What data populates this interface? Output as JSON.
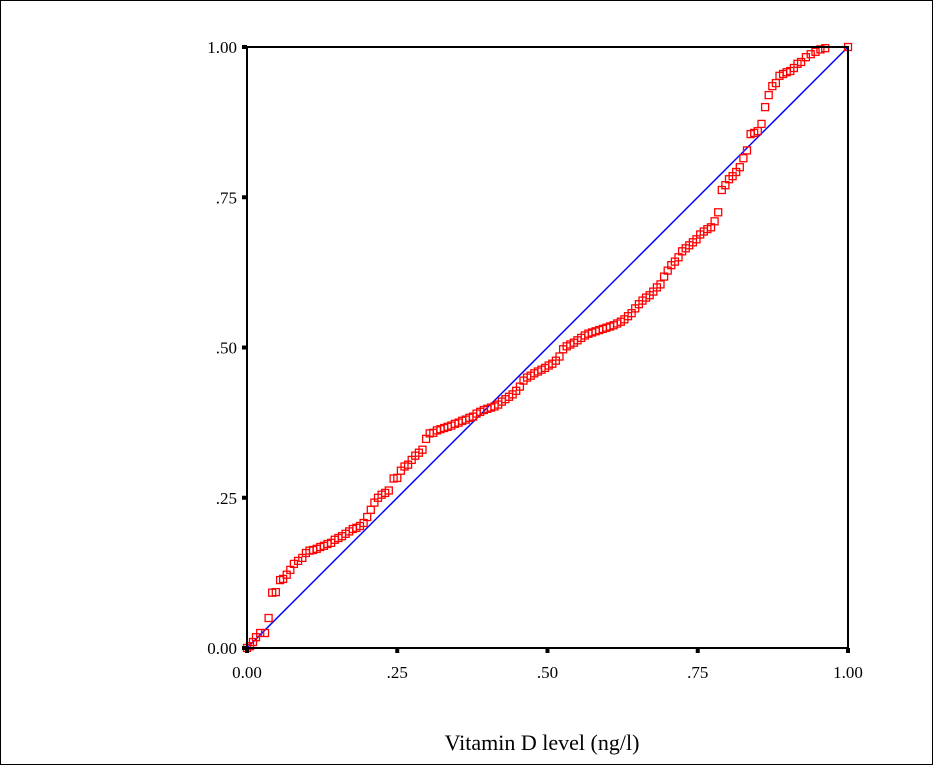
{
  "chart_data": {
    "type": "scatter",
    "title": "",
    "xlabel": "Vitamin D level (ng/l)",
    "ylabel": "",
    "xlim": [
      0,
      1
    ],
    "ylim": [
      0,
      1
    ],
    "x_ticks": [
      {
        "value": 0.0,
        "label": "0.00"
      },
      {
        "value": 0.25,
        "label": ".25"
      },
      {
        "value": 0.5,
        "label": ".50"
      },
      {
        "value": 0.75,
        "label": ".75"
      },
      {
        "value": 1.0,
        "label": "1.00"
      }
    ],
    "y_ticks": [
      {
        "value": 0.0,
        "label": "0.00"
      },
      {
        "value": 0.25,
        "label": ".25"
      },
      {
        "value": 0.5,
        "label": ".50"
      },
      {
        "value": 0.75,
        "label": ".75"
      },
      {
        "value": 1.0,
        "label": "1.00"
      }
    ],
    "grid": false,
    "legend": "none",
    "reference_line": {
      "from": [
        0,
        0
      ],
      "to": [
        1,
        1
      ],
      "color": "#0000ff"
    },
    "series": [
      {
        "marker": "open-square",
        "color": "#ff0000",
        "points": [
          [
            0.0,
            0.0
          ],
          [
            0.005,
            0.003
          ],
          [
            0.01,
            0.01
          ],
          [
            0.015,
            0.018
          ],
          [
            0.022,
            0.025
          ],
          [
            0.03,
            0.025
          ],
          [
            0.036,
            0.05
          ],
          [
            0.042,
            0.092
          ],
          [
            0.048,
            0.093
          ],
          [
            0.055,
            0.113
          ],
          [
            0.06,
            0.115
          ],
          [
            0.066,
            0.122
          ],
          [
            0.072,
            0.13
          ],
          [
            0.078,
            0.14
          ],
          [
            0.085,
            0.145
          ],
          [
            0.092,
            0.15
          ],
          [
            0.098,
            0.158
          ],
          [
            0.104,
            0.162
          ],
          [
            0.11,
            0.163
          ],
          [
            0.116,
            0.165
          ],
          [
            0.122,
            0.168
          ],
          [
            0.128,
            0.17
          ],
          [
            0.134,
            0.173
          ],
          [
            0.14,
            0.175
          ],
          [
            0.146,
            0.18
          ],
          [
            0.152,
            0.183
          ],
          [
            0.158,
            0.186
          ],
          [
            0.164,
            0.19
          ],
          [
            0.17,
            0.194
          ],
          [
            0.176,
            0.198
          ],
          [
            0.182,
            0.2
          ],
          [
            0.188,
            0.203
          ],
          [
            0.194,
            0.208
          ],
          [
            0.2,
            0.218
          ],
          [
            0.206,
            0.23
          ],
          [
            0.212,
            0.242
          ],
          [
            0.218,
            0.25
          ],
          [
            0.224,
            0.255
          ],
          [
            0.23,
            0.258
          ],
          [
            0.236,
            0.262
          ],
          [
            0.244,
            0.282
          ],
          [
            0.25,
            0.283
          ],
          [
            0.256,
            0.295
          ],
          [
            0.262,
            0.302
          ],
          [
            0.268,
            0.305
          ],
          [
            0.274,
            0.313
          ],
          [
            0.28,
            0.32
          ],
          [
            0.286,
            0.325
          ],
          [
            0.292,
            0.33
          ],
          [
            0.298,
            0.348
          ],
          [
            0.304,
            0.357
          ],
          [
            0.31,
            0.358
          ],
          [
            0.316,
            0.362
          ],
          [
            0.322,
            0.364
          ],
          [
            0.328,
            0.366
          ],
          [
            0.334,
            0.368
          ],
          [
            0.34,
            0.37
          ],
          [
            0.346,
            0.373
          ],
          [
            0.352,
            0.375
          ],
          [
            0.358,
            0.378
          ],
          [
            0.364,
            0.38
          ],
          [
            0.37,
            0.383
          ],
          [
            0.376,
            0.385
          ],
          [
            0.382,
            0.39
          ],
          [
            0.388,
            0.393
          ],
          [
            0.394,
            0.396
          ],
          [
            0.4,
            0.398
          ],
          [
            0.406,
            0.4
          ],
          [
            0.412,
            0.402
          ],
          [
            0.418,
            0.405
          ],
          [
            0.424,
            0.41
          ],
          [
            0.43,
            0.414
          ],
          [
            0.436,
            0.418
          ],
          [
            0.442,
            0.422
          ],
          [
            0.448,
            0.428
          ],
          [
            0.454,
            0.435
          ],
          [
            0.46,
            0.445
          ],
          [
            0.466,
            0.45
          ],
          [
            0.472,
            0.453
          ],
          [
            0.478,
            0.457
          ],
          [
            0.484,
            0.46
          ],
          [
            0.49,
            0.463
          ],
          [
            0.496,
            0.466
          ],
          [
            0.502,
            0.47
          ],
          [
            0.508,
            0.473
          ],
          [
            0.514,
            0.478
          ],
          [
            0.52,
            0.485
          ],
          [
            0.526,
            0.497
          ],
          [
            0.532,
            0.502
          ],
          [
            0.538,
            0.505
          ],
          [
            0.544,
            0.508
          ],
          [
            0.55,
            0.512
          ],
          [
            0.556,
            0.516
          ],
          [
            0.562,
            0.52
          ],
          [
            0.568,
            0.523
          ],
          [
            0.574,
            0.525
          ],
          [
            0.58,
            0.527
          ],
          [
            0.586,
            0.529
          ],
          [
            0.592,
            0.531
          ],
          [
            0.598,
            0.533
          ],
          [
            0.604,
            0.535
          ],
          [
            0.61,
            0.537
          ],
          [
            0.616,
            0.54
          ],
          [
            0.622,
            0.543
          ],
          [
            0.628,
            0.547
          ],
          [
            0.634,
            0.552
          ],
          [
            0.64,
            0.557
          ],
          [
            0.646,
            0.565
          ],
          [
            0.652,
            0.572
          ],
          [
            0.658,
            0.578
          ],
          [
            0.664,
            0.583
          ],
          [
            0.67,
            0.587
          ],
          [
            0.676,
            0.593
          ],
          [
            0.682,
            0.6
          ],
          [
            0.688,
            0.605
          ],
          [
            0.694,
            0.618
          ],
          [
            0.7,
            0.628
          ],
          [
            0.706,
            0.637
          ],
          [
            0.712,
            0.643
          ],
          [
            0.718,
            0.65
          ],
          [
            0.724,
            0.66
          ],
          [
            0.73,
            0.665
          ],
          [
            0.736,
            0.67
          ],
          [
            0.742,
            0.675
          ],
          [
            0.748,
            0.68
          ],
          [
            0.754,
            0.688
          ],
          [
            0.76,
            0.693
          ],
          [
            0.766,
            0.697
          ],
          [
            0.772,
            0.7
          ],
          [
            0.778,
            0.71
          ],
          [
            0.784,
            0.725
          ],
          [
            0.79,
            0.762
          ],
          [
            0.796,
            0.77
          ],
          [
            0.802,
            0.78
          ],
          [
            0.808,
            0.785
          ],
          [
            0.814,
            0.792
          ],
          [
            0.82,
            0.8
          ],
          [
            0.826,
            0.815
          ],
          [
            0.832,
            0.828
          ],
          [
            0.838,
            0.855
          ],
          [
            0.844,
            0.857
          ],
          [
            0.85,
            0.86
          ],
          [
            0.856,
            0.872
          ],
          [
            0.862,
            0.9
          ],
          [
            0.868,
            0.92
          ],
          [
            0.874,
            0.935
          ],
          [
            0.88,
            0.94
          ],
          [
            0.886,
            0.952
          ],
          [
            0.892,
            0.955
          ],
          [
            0.898,
            0.958
          ],
          [
            0.904,
            0.96
          ],
          [
            0.91,
            0.965
          ],
          [
            0.916,
            0.972
          ],
          [
            0.922,
            0.975
          ],
          [
            0.93,
            0.983
          ],
          [
            0.938,
            0.988
          ],
          [
            0.946,
            0.992
          ],
          [
            0.954,
            0.996
          ],
          [
            0.962,
            0.998
          ],
          [
            1.0,
            1.0
          ]
        ]
      }
    ]
  }
}
